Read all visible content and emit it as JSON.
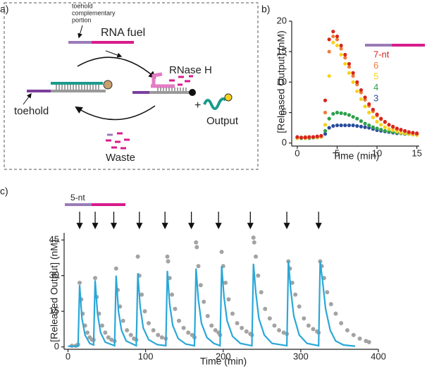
{
  "diagram": {
    "label": "a)",
    "fuel_note": [
      "toehold",
      "complementary",
      "portion"
    ],
    "fuel": "RNA fuel",
    "enzyme": "RNase H",
    "plus": "+",
    "output": "Output",
    "toehold": "toehold",
    "waste": "Waste"
  },
  "chart_data": [
    {
      "type": "scatter",
      "label": "b)",
      "x_label": "Time (min)",
      "y_label": "[Released Output] (nM)",
      "xlim": [
        -0.7,
        15.3
      ],
      "ylim": [
        -0.5,
        20
      ],
      "xticks": [
        0,
        5,
        10,
        15
      ],
      "yticks": [
        0,
        5,
        10,
        15,
        20
      ],
      "x": [
        0,
        0.5,
        1,
        1.5,
        2,
        2.5,
        3,
        3.5,
        4,
        4.5,
        5,
        5.5,
        6,
        6.5,
        7,
        7.5,
        8,
        8.5,
        9,
        9.5,
        10,
        10.5,
        11,
        11.5,
        12,
        12.5,
        13,
        13.5,
        14,
        14.5,
        15
      ],
      "series": [
        {
          "name": "7-nt",
          "color": "#d7261e",
          "values": [
            1,
            0.9,
            0.9,
            1,
            1,
            1.1,
            1.2,
            7,
            17,
            18.3,
            17.5,
            16,
            14.5,
            13,
            11.5,
            10,
            8.7,
            7.5,
            6.4,
            5.5,
            4.7,
            4,
            3.5,
            3,
            2.7,
            2.4,
            2.2,
            2,
            1.8,
            1.7,
            1.6
          ]
        },
        {
          "name": "6",
          "color": "#f07a3a",
          "values": [
            0.9,
            0.9,
            1,
            0.9,
            1,
            1,
            1.1,
            5,
            15,
            17.5,
            17,
            15.5,
            14,
            12.5,
            11,
            9.6,
            8.3,
            7.1,
            6.1,
            5.2,
            4.5,
            3.9,
            3.4,
            3,
            2.6,
            2.3,
            2.1,
            1.9,
            1.7,
            1.6,
            1.5
          ]
        },
        {
          "name": "5",
          "color": "#f5d31a",
          "values": [
            0.8,
            0.9,
            0.8,
            0.9,
            1,
            0.9,
            1,
            3,
            11,
            16.5,
            16,
            14.5,
            13,
            11.5,
            10,
            8.5,
            7.2,
            6,
            5,
            4.2,
            3.5,
            3,
            2.6,
            2.3,
            2.1,
            1.9,
            1.7,
            1.6,
            1.5,
            1.4,
            1.3
          ]
        },
        {
          "name": "4",
          "color": "#2ca048",
          "values": [
            0.8,
            0.8,
            0.9,
            0.8,
            0.9,
            0.9,
            1,
            2,
            4,
            4.8,
            5,
            4.9,
            4.8,
            4.6,
            4.3,
            4,
            3.6,
            3.2,
            2.9,
            2.6,
            2.4,
            2.2,
            2,
            1.9,
            1.8,
            1.7,
            1.6,
            1.5,
            1.5,
            1.4,
            1.4
          ]
        },
        {
          "name": "3",
          "color": "#2a4c9c",
          "values": [
            0.9,
            0.9,
            0.8,
            0.9,
            1,
            0.9,
            1,
            1.5,
            2.5,
            2.8,
            2.9,
            2.9,
            2.9,
            2.9,
            2.9,
            2.8,
            2.7,
            2.6,
            2.5,
            2.3,
            2.1,
            2,
            1.9,
            1.8,
            1.7,
            1.6,
            1.6,
            1.5,
            1.5,
            1.4,
            1.4
          ]
        }
      ]
    },
    {
      "type": "line",
      "label": "c)",
      "x_label": "Time (min)",
      "y_label": "[Released Output] (nM)",
      "annotation": "5-nt",
      "xlim": [
        -5,
        400
      ],
      "ylim": [
        -1,
        48
      ],
      "xticks": [
        0,
        100,
        200,
        300,
        400
      ],
      "yticks": [
        0,
        15,
        30,
        45
      ],
      "arrows_x": [
        15,
        35,
        59,
        92,
        125,
        159,
        194,
        235,
        282,
        323
      ],
      "series": [
        {
          "style": "markers",
          "color": "#a3a3a3",
          "x": [
            5,
            10,
            13,
            15,
            17,
            19,
            22,
            25,
            28,
            31,
            33,
            35,
            37,
            40,
            44,
            48,
            52,
            56,
            60,
            62,
            64,
            67,
            71,
            76,
            81,
            85,
            88,
            90,
            92,
            95,
            99,
            104,
            110,
            116,
            121,
            126,
            128,
            129,
            131,
            134,
            138,
            143,
            149,
            155,
            160,
            163,
            165,
            166,
            168,
            171,
            175,
            180,
            185,
            190,
            194,
            196,
            198,
            200,
            203,
            207,
            212,
            218,
            224,
            230,
            235,
            237,
            239,
            240,
            242,
            245,
            249,
            254,
            260,
            266,
            272,
            278,
            282,
            284,
            286,
            289,
            293,
            298,
            304,
            310,
            316,
            321,
            323,
            325,
            327,
            330,
            334,
            339,
            345,
            352,
            360,
            368,
            376,
            384,
            388
          ],
          "values": [
            0.5,
            0.5,
            1,
            27,
            20,
            14,
            9,
            6,
            4,
            3,
            3,
            29,
            21,
            14,
            9,
            6,
            4,
            3,
            2.5,
            33,
            24,
            17,
            11,
            7,
            5,
            3.5,
            3,
            38,
            30,
            22,
            15,
            10,
            7,
            5,
            4,
            3.5,
            38,
            36,
            29,
            22,
            16,
            11,
            8,
            6,
            5,
            4,
            44,
            42,
            34,
            26,
            19,
            13,
            9,
            7,
            6,
            5,
            40,
            34,
            27,
            20,
            14,
            10,
            8,
            6.5,
            5.5,
            5,
            46,
            44,
            38,
            30,
            23,
            16,
            12,
            9,
            7,
            6,
            5.5,
            36,
            33,
            27,
            22,
            17,
            12,
            9,
            7.5,
            6.5,
            6,
            36,
            34,
            29,
            23,
            18,
            14,
            10,
            7,
            5,
            3.5,
            2.5,
            2
          ]
        },
        {
          "style": "line",
          "color": "#2aa7d8",
          "x": [
            0,
            13,
            15,
            18,
            22,
            28,
            33,
            35,
            38,
            42,
            48,
            60,
            62,
            65,
            69,
            75,
            88,
            90,
            93,
            97,
            104,
            115,
            126,
            128,
            131,
            135,
            142,
            152,
            163,
            165,
            168,
            172,
            179,
            188,
            196,
            198,
            201,
            205,
            212,
            222,
            237,
            239,
            242,
            246,
            253,
            263,
            282,
            284,
            287,
            291,
            298,
            308,
            323,
            325,
            328,
            332,
            338,
            345,
            355,
            370
          ],
          "values": [
            0.3,
            0.3,
            26,
            12,
            5,
            1.5,
            0.8,
            28,
            14,
            6,
            2,
            0.5,
            30,
            15,
            7,
            2.5,
            0.5,
            31,
            17,
            8,
            3,
            1,
            0.5,
            32,
            18,
            9,
            3.5,
            1.2,
            0.5,
            33,
            20,
            10,
            4,
            1.5,
            0.5,
            34,
            21,
            11,
            4.5,
            1.5,
            0.5,
            35,
            23,
            12,
            5,
            1.5,
            0.5,
            36,
            24,
            13,
            5,
            1.5,
            0.5,
            36,
            28,
            16,
            7,
            2.5,
            0.8,
            0.3
          ]
        }
      ]
    }
  ]
}
